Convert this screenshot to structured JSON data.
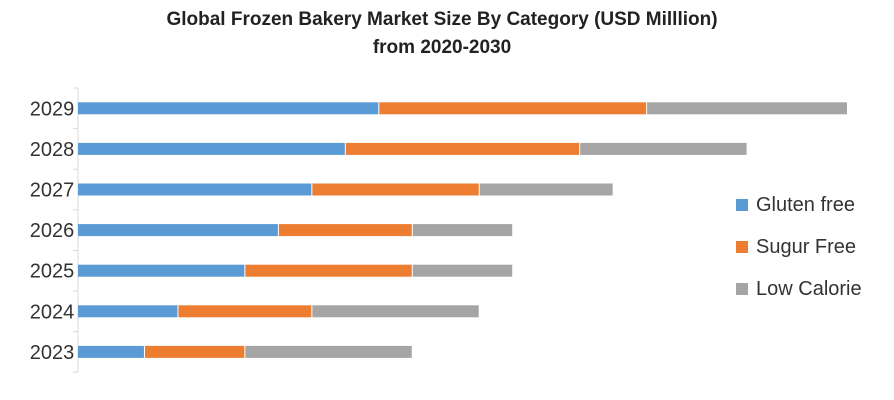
{
  "chart_data": {
    "type": "bar",
    "orientation": "horizontal",
    "stacked": true,
    "title": "Global Frozen Bakery Market Size By Category (USD Milllion)",
    "subtitle": "from 2020-2030",
    "categories": [
      "2029",
      "2028",
      "2027",
      "2026",
      "2025",
      "2024",
      "2023"
    ],
    "series": [
      {
        "name": "Gluten free",
        "color": "#5b9bd5",
        "values": [
          9,
          8,
          7,
          6,
          5,
          3,
          2
        ]
      },
      {
        "name": "Sugur Free",
        "color": "#ed7d31",
        "values": [
          8,
          7,
          5,
          4,
          5,
          4,
          3
        ]
      },
      {
        "name": "Low Calorie",
        "color": "#a5a5a5",
        "values": [
          6,
          5,
          4,
          3,
          3,
          5,
          5
        ]
      }
    ],
    "xlim": [
      0,
      23
    ],
    "grid": false,
    "legend": "right"
  }
}
